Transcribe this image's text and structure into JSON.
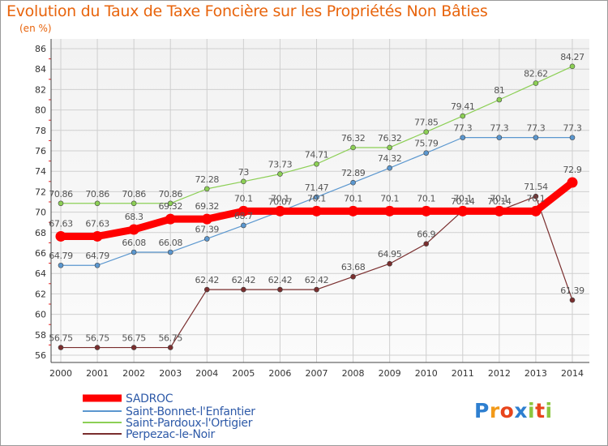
{
  "title": "Evolution du Taux de Taxe Foncière sur les Propriétés Non Bâties",
  "unit_label": "(en %)",
  "logo_text": "Proxiti",
  "colors": {
    "title": "#e8640c",
    "grid": "#cfcfcf",
    "plot_background": "#f5f5f5",
    "legend_text": "#2e5aa8"
  },
  "chart_data": {
    "type": "line",
    "title": "Evolution du Taux de Taxe Foncière sur les Propriétés Non Bâties",
    "ylabel": "(en %)",
    "xlabel": "",
    "categories": [
      "2000",
      "2001",
      "2002",
      "2003",
      "2004",
      "2005",
      "2006",
      "2007",
      "2008",
      "2009",
      "2010",
      "2011",
      "2012",
      "2013",
      "2014"
    ],
    "ylim": [
      56,
      86
    ],
    "yticks": [
      56,
      58,
      60,
      62,
      64,
      66,
      68,
      70,
      72,
      74,
      76,
      78,
      80,
      82,
      84,
      86
    ],
    "grid": true,
    "legend_position": "bottom-left",
    "series": [
      {
        "name": "SADROC",
        "color": "#ff0000",
        "emphasis": true,
        "values": [
          67.63,
          67.63,
          68.3,
          69.32,
          69.32,
          70.1,
          70.1,
          70.1,
          70.1,
          70.1,
          70.1,
          70.1,
          70.1,
          70.1,
          72.9
        ],
        "labels": [
          "67.63",
          "67.63",
          "68.3",
          "69.32",
          "69.32",
          "70.1",
          "70.1",
          "70.1",
          "70.1",
          "70.1",
          "70.1",
          "70.1",
          "70.1",
          "70.1",
          "72.9"
        ]
      },
      {
        "name": "Saint-Bonnet-l'Enfantier",
        "color": "#5b97cf",
        "values": [
          64.79,
          64.79,
          66.08,
          66.08,
          67.39,
          68.7,
          70.07,
          71.47,
          72.89,
          74.32,
          75.79,
          77.3,
          77.3,
          77.3,
          77.3
        ],
        "labels": [
          "64.79",
          "64.79",
          "66.08",
          "66.08",
          "67.39",
          "68.7",
          "70.07",
          "71.47",
          "72.89",
          "74.32",
          "75.79",
          "77.3",
          "77.3",
          "77.3",
          "77.3"
        ]
      },
      {
        "name": "Saint-Pardoux-l'Ortigier",
        "color": "#8ccf55",
        "values": [
          70.86,
          70.86,
          70.86,
          70.86,
          72.28,
          73,
          73.73,
          74.71,
          76.32,
          76.32,
          77.85,
          79.41,
          81,
          82.62,
          84.27
        ],
        "labels": [
          "70.86",
          "70.86",
          "70.86",
          "70.86",
          "72.28",
          "73",
          "73.73",
          "74.71",
          "76.32",
          "76.32",
          "77.85",
          "79.41",
          "81",
          "82.62",
          "84.27"
        ]
      },
      {
        "name": "Perpezac-le-Noir",
        "color": "#7a2e2e",
        "values": [
          56.75,
          56.75,
          56.75,
          56.75,
          62.42,
          62.42,
          62.42,
          62.42,
          63.68,
          64.95,
          66.9,
          70.14,
          70.14,
          71.54,
          61.39
        ],
        "labels": [
          "56.75",
          "56.75",
          "56.75",
          "56.75",
          "62.42",
          "62.42",
          "62.42",
          "62.42",
          "63.68",
          "64.95",
          "66.9",
          "70.14",
          "70.14",
          "71.54",
          "61.39"
        ]
      }
    ]
  }
}
